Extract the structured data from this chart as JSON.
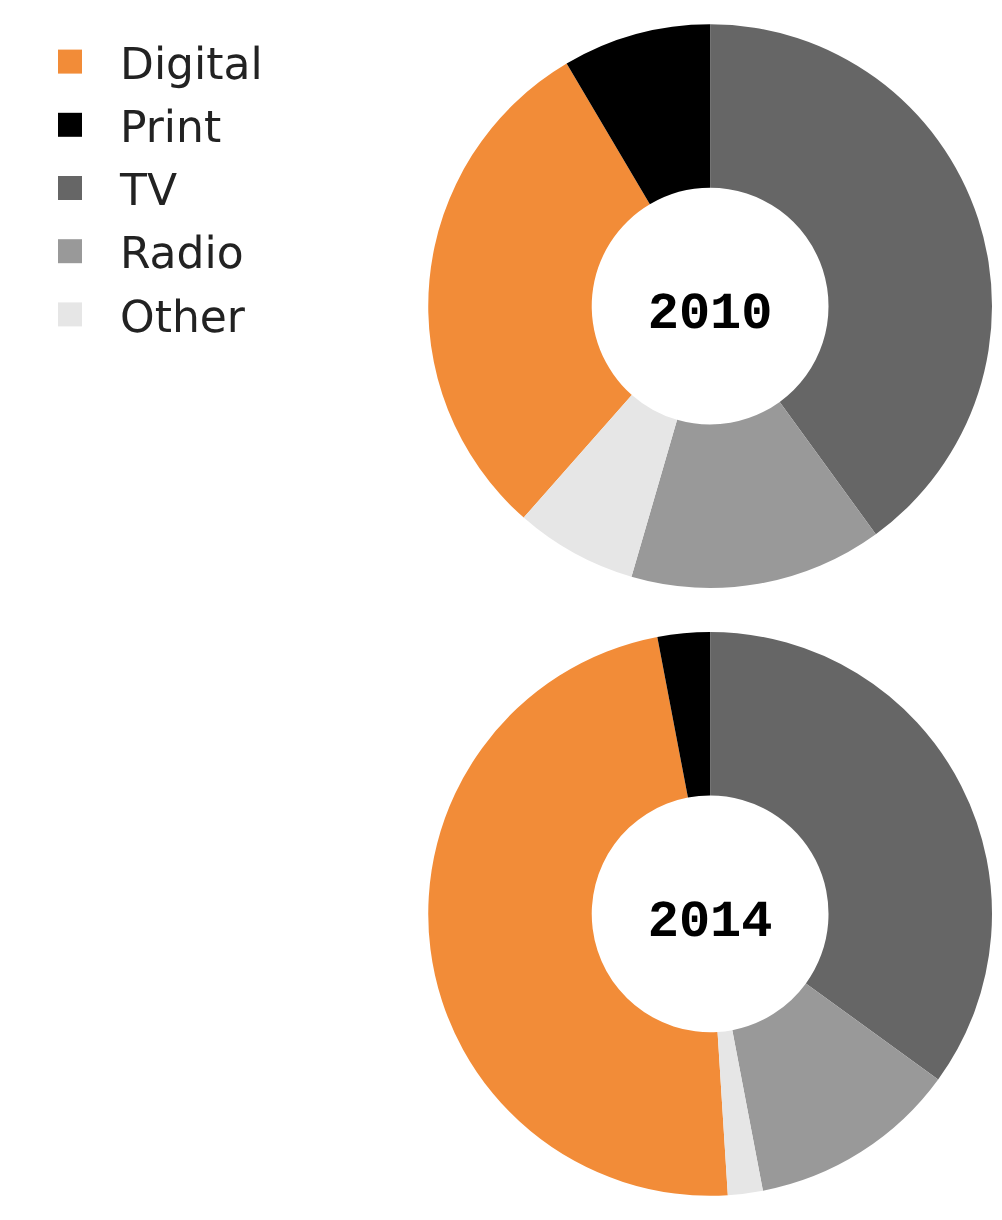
{
  "chart_data": {
    "type": "donut",
    "categories": [
      "Digital",
      "Print",
      "TV",
      "Radio",
      "Other"
    ],
    "colors": [
      "#f28c38",
      "#000000",
      "#666666",
      "#999999",
      "#e6e6e6"
    ],
    "legend": "left",
    "series": [
      {
        "name": "2010",
        "values": [
          30,
          8.5,
          40,
          14.5,
          7
        ]
      },
      {
        "name": "2014",
        "values": [
          48,
          3,
          35,
          12,
          2
        ]
      }
    ]
  }
}
